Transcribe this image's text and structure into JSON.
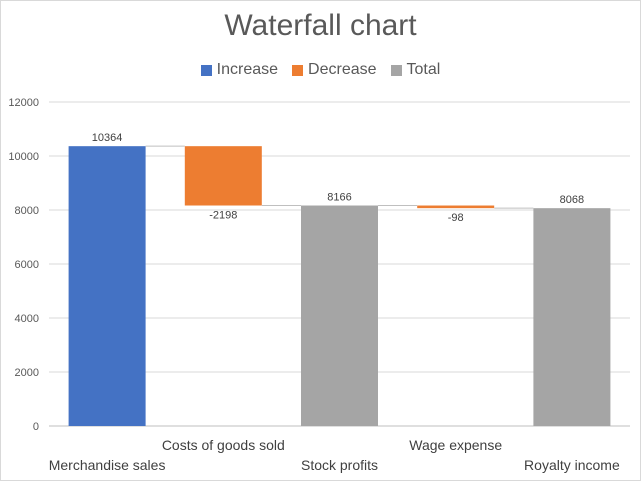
{
  "chart_data": {
    "type": "bar",
    "subtype": "waterfall",
    "title": "Waterfall chart",
    "xlabel": "",
    "ylabel": "",
    "ylim": [
      0,
      12000
    ],
    "yticks": [
      0,
      2000,
      4000,
      6000,
      8000,
      10000,
      12000
    ],
    "grid": true,
    "legend_position": "top",
    "legend": [
      {
        "name": "Increase",
        "color": "#4472c4"
      },
      {
        "name": "Decrease",
        "color": "#ed7d31"
      },
      {
        "name": "Total",
        "color": "#a5a5a5"
      }
    ],
    "categories": [
      "Merchandise sales",
      "Costs of goods sold",
      "Stock profits",
      "Wage expense",
      "Royalty income"
    ],
    "values": [
      10364,
      -2198,
      8166,
      -98,
      8068
    ],
    "kinds": [
      "increase",
      "decrease",
      "total",
      "decrease",
      "total"
    ],
    "data_labels": [
      "10364",
      "-2198",
      "8166",
      "-98",
      "8068"
    ]
  }
}
